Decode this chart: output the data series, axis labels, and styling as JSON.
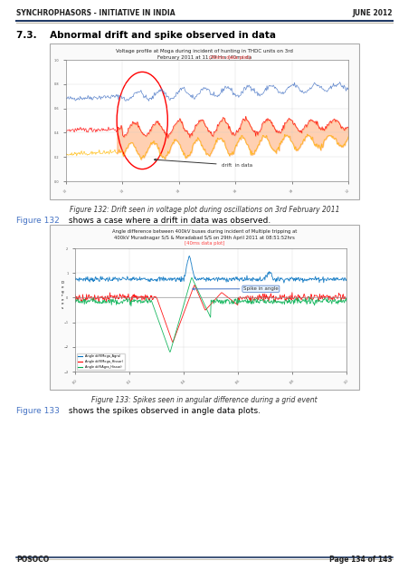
{
  "header_left": "SYNCHROPHASORS - INITIATIVE IN INDIA",
  "header_right": "JUNE 2012",
  "header_line_color1": "#1F3864",
  "header_line_color2": "#BFB9A8",
  "section_title": "7.3.    Abnormal drift and spike observed in data",
  "fig132_title_line1": "Voltage profile at Moga during incident of hunting in THDC units on 3rd",
  "fig132_title_line2": "February 2011 at 11:29 Hrs (40ms data plot)",
  "fig132_caption": "Figure 132: Drift seen in voltage plot during oscillations on 3rd February 2011",
  "fig132_ref_color": "#4472C4",
  "fig132_text1": "Figure 132 shows a case where a drift in data was observed.",
  "fig133_title_line1": "Angle difference between 400kV buses during incident of Multiple tripping at",
  "fig133_title_line2": "400kV Muradnagar S/S & Moradabad S/S on 29th April 2011 at 08:51:52hrs",
  "fig133_title_line3": "[40ms data plot]",
  "fig133_caption": "Figure 133: Spikes seen in angular difference during a grid event",
  "fig133_ref_color": "#4472C4",
  "fig133_text2": "Figure 133 shows the spikes observed in angle data plots.",
  "footer_left": "POSOCO",
  "footer_right": "Page 134 of 143",
  "bg_color": "#FFFFFF",
  "border_color": "#000000",
  "chart_bg": "#FFFFFF",
  "chart_border": "#AAAAAA"
}
